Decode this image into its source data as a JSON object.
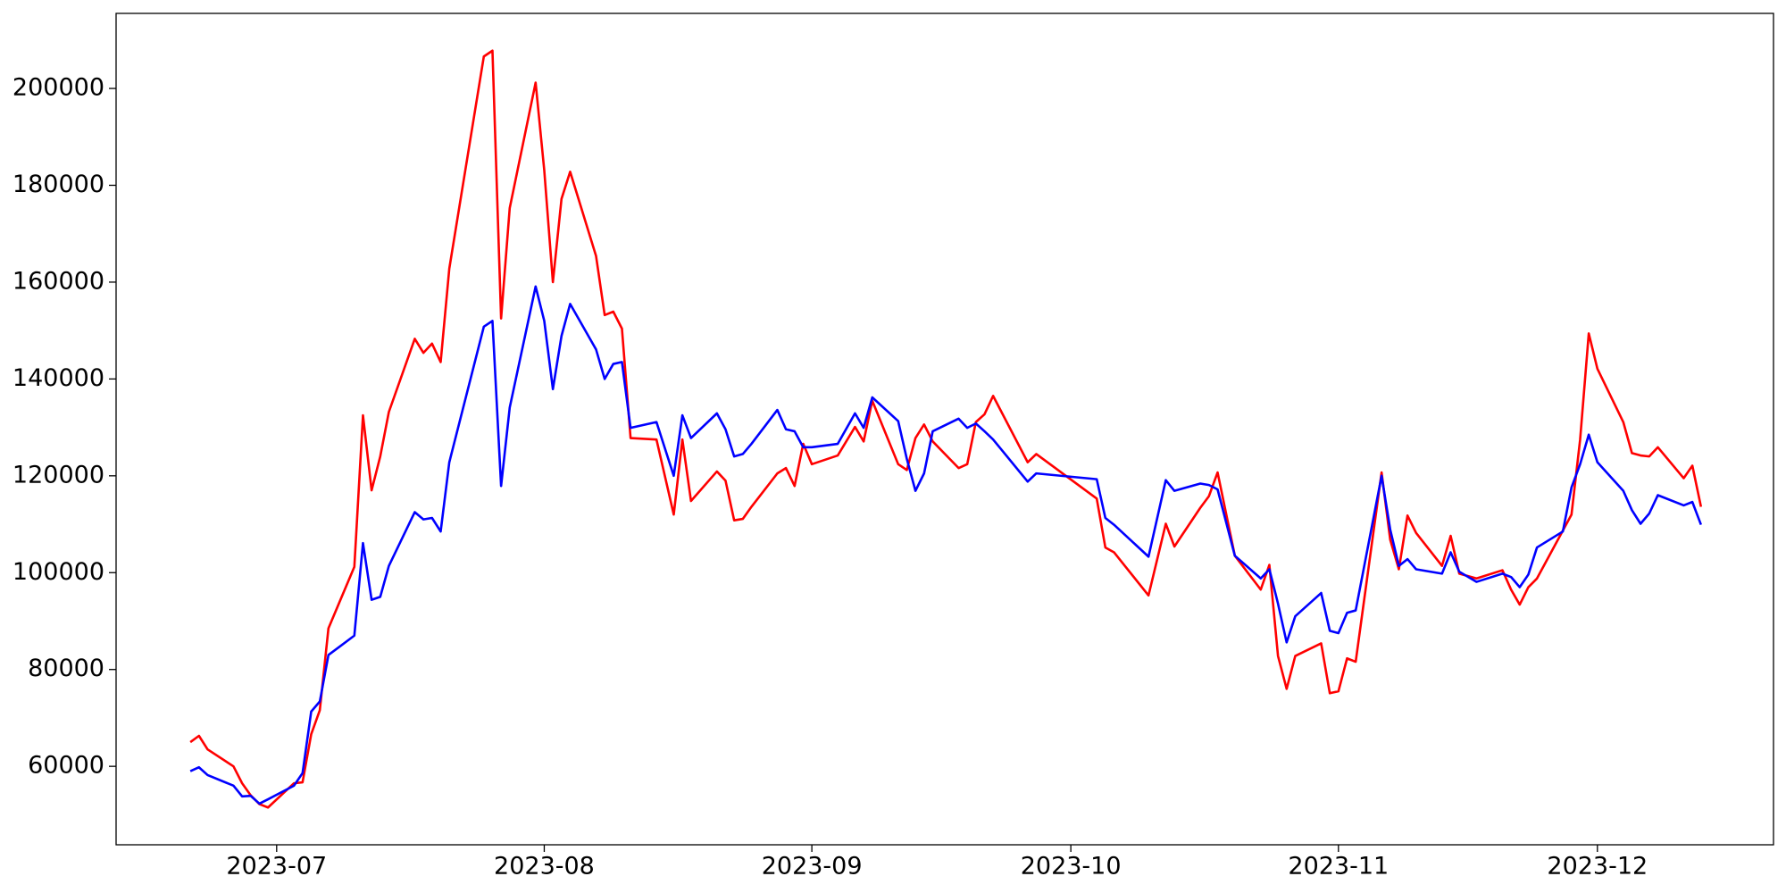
{
  "chart_data": {
    "type": "line",
    "x": [
      171,
      172,
      173,
      176,
      177,
      178,
      179,
      180,
      183,
      184,
      185,
      186,
      187,
      190,
      191,
      192,
      193,
      194,
      197,
      198,
      199,
      200,
      201,
      205,
      206,
      207,
      208,
      211,
      212,
      213,
      214,
      215,
      218,
      219,
      220,
      221,
      222,
      225,
      227,
      228,
      229,
      232,
      233,
      234,
      235,
      236,
      239,
      240,
      241,
      242,
      243,
      246,
      248,
      249,
      250,
      253,
      254,
      255,
      256,
      257,
      260,
      261,
      262,
      263,
      264,
      268,
      269,
      276,
      277,
      278,
      282,
      284,
      285,
      288,
      289,
      290,
      292,
      295,
      296,
      297,
      298,
      299,
      302,
      303,
      304,
      305,
      306,
      309,
      310,
      311,
      312,
      313,
      316,
      317,
      318,
      320,
      323,
      324,
      325,
      326,
      327,
      330,
      331,
      332,
      333,
      334,
      337,
      338,
      339,
      340,
      341,
      344,
      345,
      346
    ],
    "series": [
      {
        "color": "#ff0000",
        "values": [
          65000,
          66300,
          63500,
          60000,
          56500,
          54000,
          52200,
          51500,
          56500,
          56700,
          66600,
          71600,
          88500,
          101200,
          132500,
          117000,
          124000,
          133200,
          148300,
          145400,
          147300,
          143500,
          162800,
          206600,
          207800,
          152500,
          175300,
          201200,
          183100,
          160000,
          177200,
          182800,
          165400,
          153200,
          153900,
          150400,
          127800,
          127500,
          112000,
          127500,
          114800,
          120900,
          119000,
          110800,
          111100,
          113600,
          120500,
          121600,
          117900,
          126600,
          122400,
          124200,
          130100,
          127100,
          135500,
          122400,
          121200,
          127800,
          130600,
          127100,
          121600,
          122400,
          131100,
          132700,
          136500,
          122800,
          124500,
          115300,
          105200,
          104200,
          95300,
          110100,
          105400,
          113400,
          115800,
          120700,
          103500,
          96500,
          101600,
          82800,
          76000,
          82800,
          85400,
          75100,
          75500,
          82300,
          81600,
          120700,
          106800,
          100700,
          111800,
          108200,
          101400,
          107600,
          99800,
          98800,
          100500,
          96500,
          93400,
          97000,
          98800,
          108700,
          112000,
          127500,
          149400,
          142100,
          131100,
          124700,
          124200,
          124000,
          125900,
          119500,
          122100,
          113600
        ]
      },
      {
        "color": "#0000ff",
        "values": [
          59000,
          59800,
          58200,
          56000,
          53800,
          53900,
          52300,
          53200,
          56000,
          58600,
          71300,
          73400,
          83000,
          87000,
          106100,
          94400,
          95000,
          101400,
          112500,
          111000,
          111300,
          108500,
          122800,
          150800,
          152000,
          117900,
          134100,
          159100,
          152000,
          137900,
          148900,
          155500,
          146100,
          140000,
          143100,
          143500,
          129900,
          131100,
          120000,
          132500,
          127800,
          132900,
          129600,
          124000,
          124500,
          126600,
          133600,
          129600,
          129200,
          125900,
          125900,
          126600,
          132900,
          129900,
          136200,
          131300,
          123500,
          116900,
          120500,
          129200,
          131800,
          129900,
          130800,
          129200,
          127500,
          118800,
          120500,
          119300,
          111300,
          109900,
          103300,
          119100,
          116900,
          118400,
          118100,
          117200,
          103500,
          98800,
          100700,
          93600,
          85600,
          91000,
          95800,
          88000,
          87500,
          91700,
          92200,
          120000,
          108900,
          101400,
          102800,
          100700,
          99800,
          104200,
          100200,
          98100,
          99800,
          99100,
          97000,
          99600,
          105200,
          108500,
          117600,
          122400,
          128500,
          122800,
          116900,
          112900,
          110100,
          112200,
          116000,
          113900,
          114600,
          109900
        ]
      }
    ],
    "xlim": [
      162.4,
      354.4
    ],
    "xticks": [
      {
        "value": 181,
        "label": "2023-07"
      },
      {
        "value": 212,
        "label": "2023-08"
      },
      {
        "value": 243,
        "label": "2023-09"
      },
      {
        "value": 273,
        "label": "2023-10"
      },
      {
        "value": 304,
        "label": "2023-11"
      },
      {
        "value": 334,
        "label": "2023-12"
      }
    ],
    "ylim": [
      43800,
      215500
    ],
    "yticks": [
      60000,
      80000,
      100000,
      120000,
      140000,
      160000,
      180000,
      200000
    ]
  }
}
